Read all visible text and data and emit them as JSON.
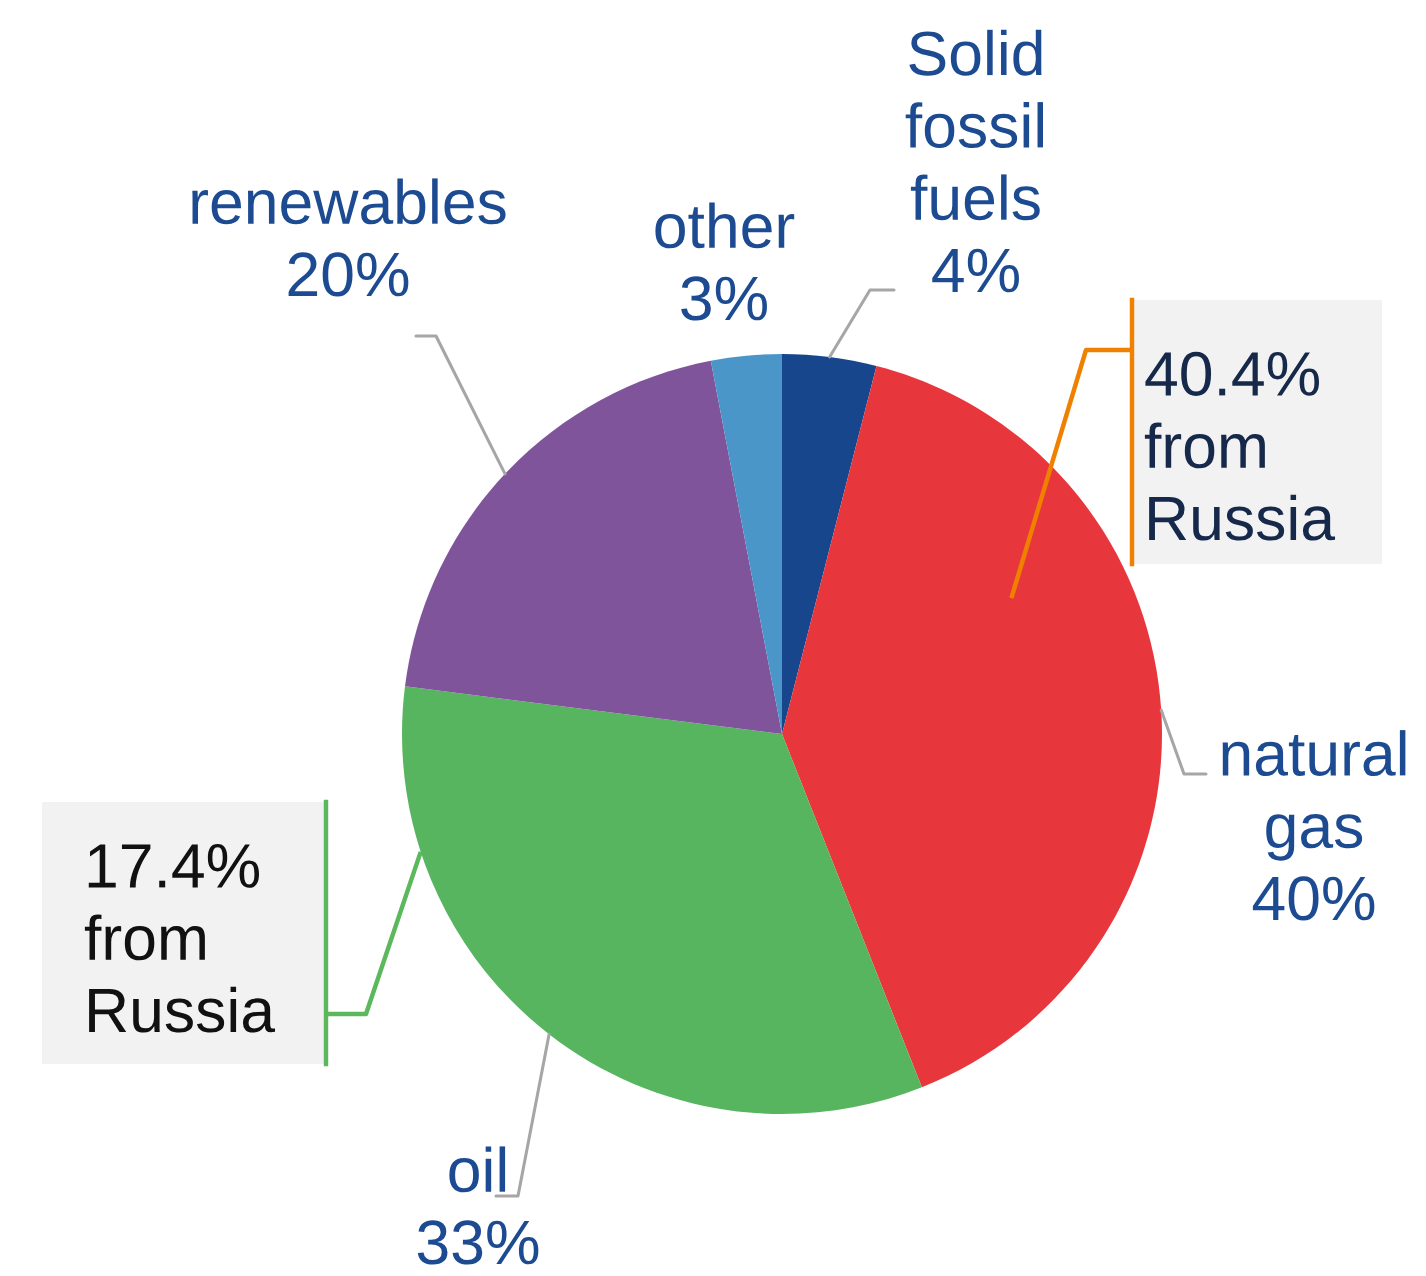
{
  "chart_data": {
    "type": "pie",
    "categories": [
      "Solid fossil fuels",
      "natural gas",
      "oil",
      "renewables",
      "other"
    ],
    "values": [
      4,
      40,
      33,
      20,
      3
    ],
    "value_labels": [
      "4%",
      "40%",
      "33%",
      "20%",
      "3%"
    ],
    "colors": [
      "#17468c",
      "#e8363d",
      "#57b560",
      "#80549b",
      "#4a96c8"
    ],
    "annotations": [
      "40.4% from Russia",
      "17.4% from Russia"
    ]
  }
}
